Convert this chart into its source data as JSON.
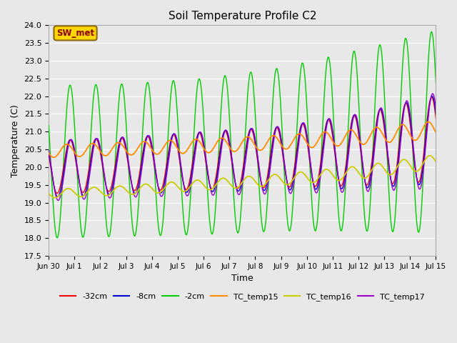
{
  "title": "Soil Temperature Profile C2",
  "xlabel": "Time",
  "ylabel": "Temperature (C)",
  "ylim": [
    17.5,
    24.0
  ],
  "annotation": "SW_met",
  "annotation_color": "#8B0000",
  "annotation_bg": "#FFD700",
  "annotation_border": "#8B6914",
  "bg_color": "#E8E8E8",
  "legend_entries": [
    "-32cm",
    "-8cm",
    "-2cm",
    "TC_temp15",
    "TC_temp16",
    "TC_temp17"
  ],
  "line_colors": [
    "#FF0000",
    "#0000CD",
    "#00CC00",
    "#FF8C00",
    "#CCCC00",
    "#9900CC"
  ],
  "x_tick_labels": [
    "Jun 30",
    "Jul 1",
    "Jul 2",
    "Jul 3",
    "Jul 4",
    "Jul 5",
    "Jul 6",
    "Jul 7",
    "Jul 8",
    "Jul 9",
    "Jul 10",
    "Jul 11",
    "Jul 12",
    "Jul 13",
    "Jul 14",
    "Jul 15"
  ]
}
